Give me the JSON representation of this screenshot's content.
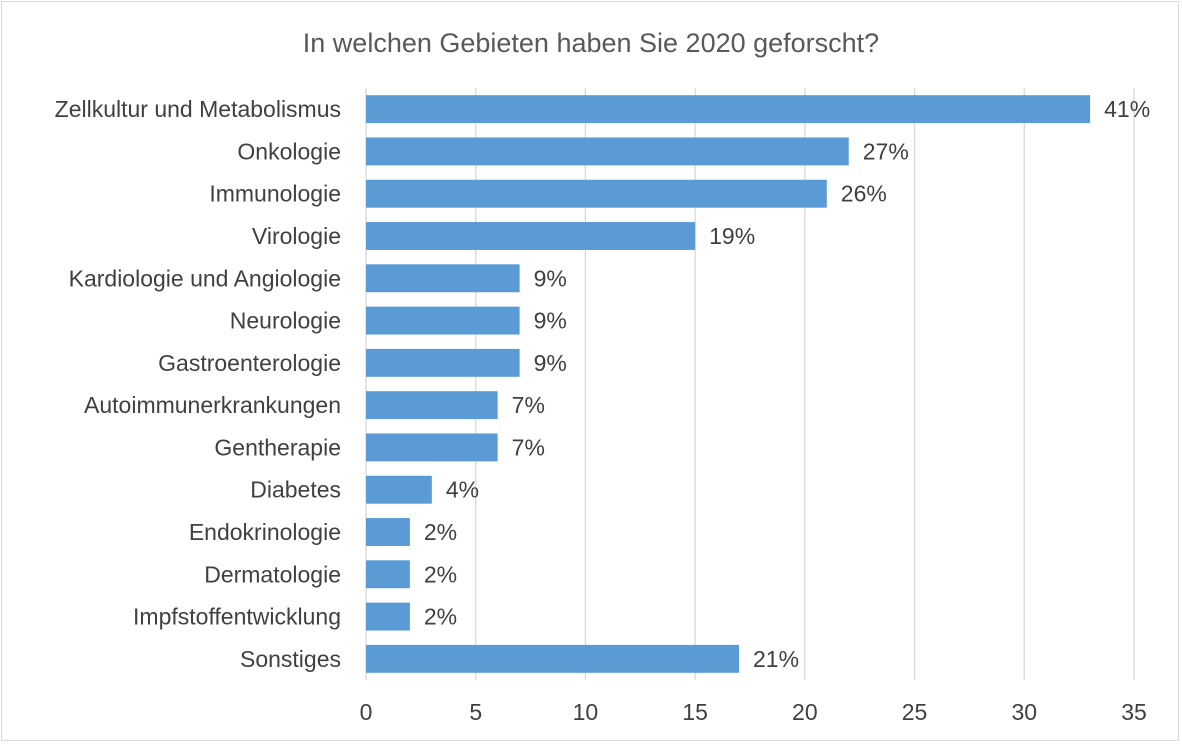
{
  "chart_data": {
    "type": "bar",
    "orientation": "horizontal",
    "title": "In welchen Gebieten haben Sie 2020 geforscht?",
    "xlabel": "",
    "ylabel": "",
    "xlim": [
      0,
      35
    ],
    "xticks": [
      0,
      5,
      10,
      15,
      20,
      25,
      30,
      35
    ],
    "grid": true,
    "legend": "none",
    "bar_color": "#5b9bd5",
    "categories": [
      "Zellkultur und Metabolismus",
      "Onkologie",
      "Immunologie",
      "Virologie",
      "Kardiologie und Angiologie",
      "Neurologie",
      "Gastroenterologie",
      "Autoimmunerkrankungen",
      "Gentherapie",
      "Diabetes",
      "Endokrinologie",
      "Dermatologie",
      "Impfstoffentwicklung",
      "Sonstiges"
    ],
    "values": [
      33,
      22,
      21,
      15,
      7,
      7,
      7,
      6,
      6,
      3,
      2,
      2,
      2,
      17
    ],
    "data_labels": [
      "41%",
      "27%",
      "26%",
      "19%",
      "9%",
      "9%",
      "9%",
      "7%",
      "7%",
      "4%",
      "2%",
      "2%",
      "2%",
      "21%"
    ]
  }
}
